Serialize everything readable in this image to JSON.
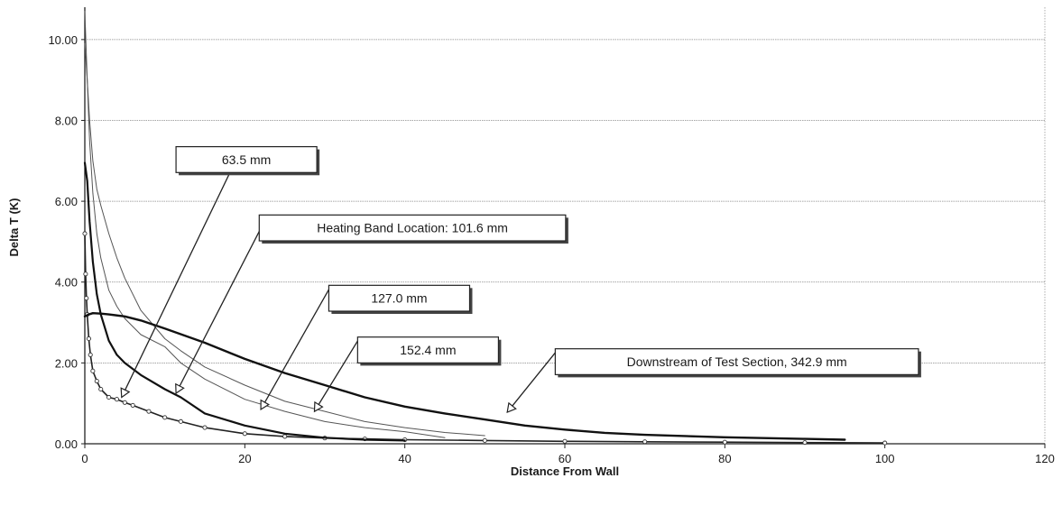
{
  "chart_data": {
    "type": "line",
    "title": "",
    "xlabel": "Distance From Wall",
    "ylabel": "Delta T (K)",
    "xlim": [
      0,
      120
    ],
    "ylim": [
      0,
      10.8
    ],
    "xticks": [
      0,
      20,
      40,
      60,
      80,
      100,
      120
    ],
    "xtick_labels": [
      "0",
      "20",
      "40",
      "60",
      "80",
      "100",
      "120"
    ],
    "yticks": [
      0,
      2,
      4,
      6,
      8,
      10
    ],
    "ytick_labels": [
      "0.00",
      "2.00",
      "4.00",
      "6.00",
      "8.00",
      "10.00"
    ],
    "grid": "horizontal",
    "legend": "none",
    "series": [
      {
        "key": "s635",
        "color": "#222222",
        "line_width": 1.6,
        "markers": true,
        "x": [
          0,
          0.1,
          0.2,
          0.3,
          0.5,
          0.7,
          1.0,
          1.5,
          2.0,
          3.0,
          4.0,
          5.0,
          6.0,
          8.0,
          10.0,
          12.0,
          15.0,
          20.0,
          25.0,
          30.0,
          35.0,
          40.0,
          50.0,
          60.0,
          70.0,
          80.0,
          90.0,
          100.0
        ],
        "y": [
          5.2,
          4.2,
          3.6,
          3.2,
          2.6,
          2.2,
          1.8,
          1.55,
          1.35,
          1.15,
          1.1,
          1.02,
          0.95,
          0.8,
          0.65,
          0.55,
          0.4,
          0.25,
          0.18,
          0.14,
          0.12,
          0.1,
          0.08,
          0.06,
          0.05,
          0.04,
          0.03,
          0.02
        ]
      },
      {
        "key": "s1016",
        "color": "#111111",
        "line_width": 2.2,
        "markers": false,
        "x": [
          0,
          0.3,
          0.6,
          1.0,
          1.5,
          2.0,
          3.0,
          4.0,
          5.0,
          7.0,
          10.0,
          12.0,
          15.0,
          20.0,
          25.0,
          30.0,
          35.0,
          40.0
        ],
        "y": [
          6.95,
          6.5,
          5.5,
          4.5,
          3.7,
          3.2,
          2.55,
          2.2,
          2.0,
          1.7,
          1.35,
          1.15,
          0.75,
          0.45,
          0.25,
          0.15,
          0.1,
          0.08
        ]
      },
      {
        "key": "s1270",
        "color": "#555555",
        "line_width": 1.0,
        "markers": false,
        "x": [
          0,
          0.3,
          0.6,
          1.0,
          1.5,
          2.0,
          3.0,
          4.0,
          5.0,
          7.0,
          10.0,
          12.0,
          15.0,
          20.0,
          25.0,
          30.0,
          35.0,
          40.0,
          45.0
        ],
        "y": [
          10.7,
          9.0,
          7.5,
          6.2,
          5.2,
          4.6,
          3.8,
          3.4,
          3.1,
          2.7,
          2.4,
          2.0,
          1.6,
          1.1,
          0.8,
          0.55,
          0.4,
          0.3,
          0.15
        ]
      },
      {
        "key": "s1524",
        "color": "#555555",
        "line_width": 1.0,
        "markers": false,
        "x": [
          0,
          0.3,
          0.6,
          1.0,
          1.5,
          2.0,
          3.0,
          4.0,
          5.0,
          7.0,
          10.0,
          12.0,
          15.0,
          20.0,
          25.0,
          30.0,
          35.0,
          40.0,
          45.0,
          50.0
        ],
        "y": [
          9.9,
          9.0,
          8.0,
          7.0,
          6.3,
          5.9,
          5.2,
          4.6,
          4.1,
          3.3,
          2.6,
          2.3,
          1.9,
          1.45,
          1.05,
          0.8,
          0.55,
          0.4,
          0.28,
          0.2
        ]
      },
      {
        "key": "s3429",
        "color": "#111111",
        "line_width": 2.4,
        "markers": false,
        "x": [
          0,
          0.5,
          1.0,
          2.0,
          3.0,
          5.0,
          7.0,
          10.0,
          15.0,
          20.0,
          25.0,
          30.0,
          35.0,
          40.0,
          45.0,
          50.0,
          55.0,
          60.0,
          65.0,
          70.0,
          80.0,
          90.0,
          95.0
        ],
        "y": [
          3.15,
          3.2,
          3.23,
          3.22,
          3.2,
          3.15,
          3.05,
          2.85,
          2.5,
          2.1,
          1.75,
          1.45,
          1.15,
          0.92,
          0.75,
          0.6,
          0.45,
          0.35,
          0.27,
          0.22,
          0.16,
          0.12,
          0.1
        ]
      }
    ],
    "annotations": [
      {
        "text": "63.5 mm",
        "box": {
          "x": 11.4,
          "y": 7.35,
          "w": 17.6,
          "h": 0.64
        },
        "arrow_from": [
          19.7,
          7.35
        ],
        "arrow_to": [
          4.6,
          1.15
        ]
      },
      {
        "text": "Heating Band Location: 101.6 mm",
        "box": {
          "x": 21.8,
          "y": 5.66,
          "w": 38.3,
          "h": 0.64
        },
        "arrow_from": [
          22.0,
          5.33
        ],
        "arrow_to": [
          11.4,
          1.25
        ]
      },
      {
        "text": "127.0 mm",
        "box": {
          "x": 30.5,
          "y": 3.92,
          "w": 17.6,
          "h": 0.64
        },
        "arrow_from": [
          30.8,
          3.92
        ],
        "arrow_to": [
          22.0,
          0.85
        ]
      },
      {
        "text": "152.4 mm",
        "box": {
          "x": 34.1,
          "y": 2.64,
          "w": 17.6,
          "h": 0.64
        },
        "arrow_from": [
          34.4,
          2.64
        ],
        "arrow_to": [
          28.7,
          0.8
        ]
      },
      {
        "text": "Downstream of Test Section, 342.9 mm",
        "box": {
          "x": 58.8,
          "y": 2.35,
          "w": 45.4,
          "h": 0.64
        },
        "arrow_from": [
          59.2,
          2.35
        ],
        "arrow_to": [
          52.8,
          0.78
        ]
      }
    ]
  }
}
